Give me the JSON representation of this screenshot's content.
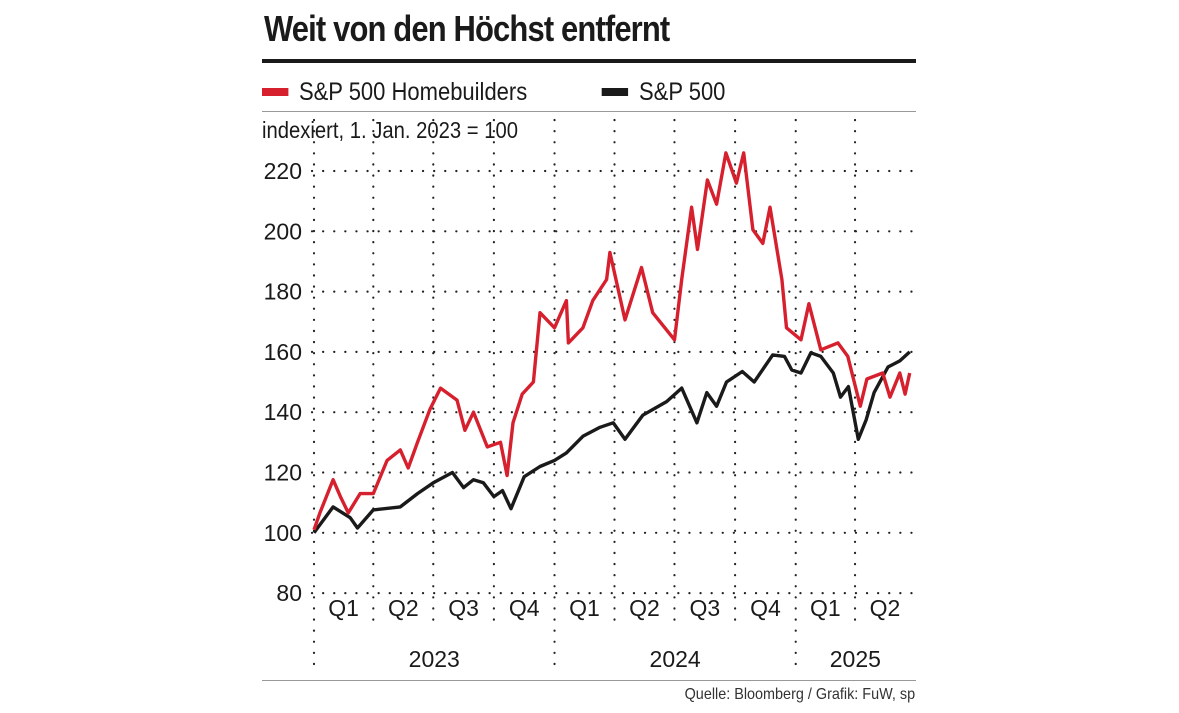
{
  "chart_data": {
    "type": "line",
    "title": "Weit von den Höchst entfernt",
    "subtitle": "indexiert, 1. Jan. 2023 = 100",
    "source": "Quelle: Bloomberg / Grafik: FuW, sp",
    "ylim": [
      80,
      220
    ],
    "yticks": [
      80,
      100,
      120,
      140,
      160,
      180,
      200,
      220
    ],
    "xlim": [
      "2023-01-01",
      "2025-07-01"
    ],
    "quarters": [
      {
        "label": "Q1",
        "start": "2023-01-01"
      },
      {
        "label": "Q2",
        "start": "2023-04-01"
      },
      {
        "label": "Q3",
        "start": "2023-07-01"
      },
      {
        "label": "Q4",
        "start": "2023-10-01"
      },
      {
        "label": "Q1",
        "start": "2024-01-01"
      },
      {
        "label": "Q2",
        "start": "2024-04-01"
      },
      {
        "label": "Q3",
        "start": "2024-07-01"
      },
      {
        "label": "Q4",
        "start": "2024-10-01"
      },
      {
        "label": "Q1",
        "start": "2025-01-01"
      },
      {
        "label": "Q2",
        "start": "2025-04-01"
      }
    ],
    "years": [
      {
        "label": "2023",
        "start": "2023-01-01",
        "end": "2024-01-01"
      },
      {
        "label": "2024",
        "start": "2024-01-01",
        "end": "2025-01-01"
      },
      {
        "label": "2025",
        "start": "2025-01-01",
        "end": "2025-07-01"
      }
    ],
    "grid": true,
    "legend": "top-left",
    "series": [
      {
        "name": "S&P 500 Homebuilders",
        "color": "#d7202e",
        "points": [
          [
            "2023-01-01",
            101
          ],
          [
            "2023-01-10",
            106.6
          ],
          [
            "2023-01-30",
            117.6
          ],
          [
            "2023-02-10",
            112
          ],
          [
            "2023-02-22",
            106.6
          ],
          [
            "2023-03-12",
            113
          ],
          [
            "2023-04-01",
            113
          ],
          [
            "2023-04-22",
            124
          ],
          [
            "2023-05-12",
            127.5
          ],
          [
            "2023-05-24",
            121.5
          ],
          [
            "2023-06-07",
            130
          ],
          [
            "2023-06-26",
            141
          ],
          [
            "2023-07-12",
            148
          ],
          [
            "2023-08-06",
            144
          ],
          [
            "2023-08-18",
            134
          ],
          [
            "2023-08-31",
            140
          ],
          [
            "2023-09-21",
            128.5
          ],
          [
            "2023-10-11",
            130
          ],
          [
            "2023-10-21",
            119
          ],
          [
            "2023-10-30",
            136.5
          ],
          [
            "2023-11-13",
            146
          ],
          [
            "2023-11-30",
            150
          ],
          [
            "2023-12-10",
            173
          ],
          [
            "2024-01-01",
            168
          ],
          [
            "2024-01-19",
            177
          ],
          [
            "2024-01-22",
            163
          ],
          [
            "2024-02-13",
            168
          ],
          [
            "2024-02-28",
            177
          ],
          [
            "2024-03-20",
            184
          ],
          [
            "2024-03-25",
            193
          ],
          [
            "2024-04-17",
            170.6
          ],
          [
            "2024-05-12",
            188
          ],
          [
            "2024-05-29",
            173
          ],
          [
            "2024-07-01",
            164
          ],
          [
            "2024-07-12",
            184
          ],
          [
            "2024-07-27",
            208
          ],
          [
            "2024-08-05",
            194
          ],
          [
            "2024-08-20",
            217
          ],
          [
            "2024-09-03",
            209
          ],
          [
            "2024-09-17",
            226
          ],
          [
            "2024-10-03",
            216
          ],
          [
            "2024-10-14",
            226
          ],
          [
            "2024-10-28",
            200.5
          ],
          [
            "2024-11-12",
            196
          ],
          [
            "2024-11-23",
            208
          ],
          [
            "2024-12-11",
            184
          ],
          [
            "2024-12-18",
            168
          ],
          [
            "2025-01-09",
            164
          ],
          [
            "2025-01-21",
            176
          ],
          [
            "2025-02-08",
            160.7
          ],
          [
            "2025-03-06",
            163
          ],
          [
            "2025-03-21",
            158.5
          ],
          [
            "2025-04-09",
            142
          ],
          [
            "2025-04-19",
            151
          ],
          [
            "2025-05-13",
            153
          ],
          [
            "2025-05-24",
            145
          ],
          [
            "2025-06-08",
            153
          ],
          [
            "2025-06-16",
            146
          ],
          [
            "2025-06-23",
            153
          ]
        ]
      },
      {
        "name": "S&P 500",
        "color": "#1a1a1a",
        "points": [
          [
            "2023-01-01",
            100
          ],
          [
            "2023-01-30",
            108.6
          ],
          [
            "2023-02-25",
            105
          ],
          [
            "2023-03-08",
            101.6
          ],
          [
            "2023-04-01",
            107.6
          ],
          [
            "2023-05-12",
            108.6
          ],
          [
            "2023-06-07",
            113
          ],
          [
            "2023-07-01",
            116.6
          ],
          [
            "2023-07-30",
            120
          ],
          [
            "2023-08-16",
            115
          ],
          [
            "2023-08-31",
            117.6
          ],
          [
            "2023-09-15",
            116.6
          ],
          [
            "2023-10-01",
            112
          ],
          [
            "2023-10-14",
            114
          ],
          [
            "2023-10-27",
            108
          ],
          [
            "2023-11-16",
            118.6
          ],
          [
            "2023-12-10",
            122
          ],
          [
            "2024-01-01",
            124
          ],
          [
            "2024-01-19",
            126.5
          ],
          [
            "2024-02-13",
            132
          ],
          [
            "2024-03-10",
            135
          ],
          [
            "2024-03-30",
            136.5
          ],
          [
            "2024-04-17",
            131
          ],
          [
            "2024-05-14",
            139
          ],
          [
            "2024-06-19",
            143.5
          ],
          [
            "2024-07-12",
            148
          ],
          [
            "2024-08-04",
            136.5
          ],
          [
            "2024-08-19",
            146.5
          ],
          [
            "2024-09-03",
            142
          ],
          [
            "2024-09-18",
            150
          ],
          [
            "2024-10-12",
            153.5
          ],
          [
            "2024-10-30",
            150
          ],
          [
            "2024-11-27",
            159
          ],
          [
            "2024-12-15",
            158.5
          ],
          [
            "2024-12-26",
            154
          ],
          [
            "2025-01-09",
            153
          ],
          [
            "2025-01-24",
            159.7
          ],
          [
            "2025-02-08",
            158.5
          ],
          [
            "2025-02-27",
            153
          ],
          [
            "2025-03-10",
            145
          ],
          [
            "2025-03-22",
            148.5
          ],
          [
            "2025-04-06",
            131
          ],
          [
            "2025-04-18",
            137.5
          ],
          [
            "2025-04-30",
            146.5
          ],
          [
            "2025-05-21",
            155
          ],
          [
            "2025-06-08",
            157
          ],
          [
            "2025-06-23",
            160
          ]
        ]
      }
    ]
  }
}
